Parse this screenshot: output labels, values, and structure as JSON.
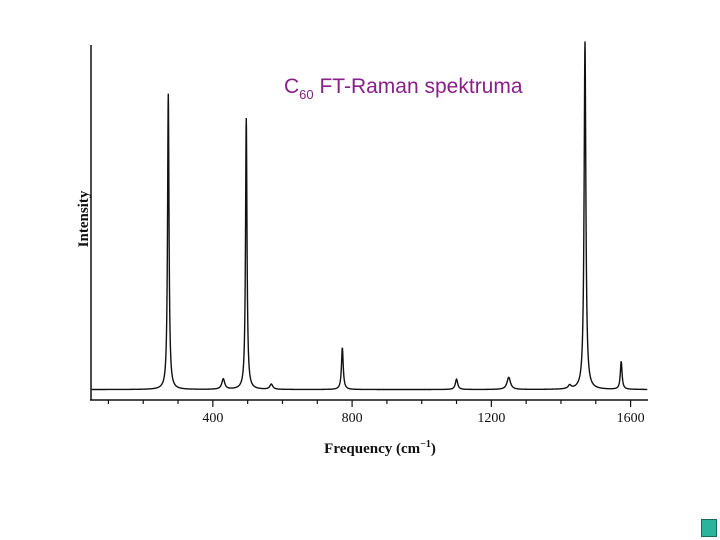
{
  "chart_data": {
    "type": "line",
    "title_main": "C",
    "title_sub": "60",
    "title_rest": " FT-Raman spektruma",
    "xlabel": "Frequency (cm",
    "xlabel_sup": "−1",
    "xlabel_end": ")",
    "ylabel": "Intensity",
    "xlim": [
      50,
      1650
    ],
    "ylim": [
      0,
      1.02
    ],
    "x_ticks": [
      400,
      800,
      1200,
      1600
    ],
    "x_tick_labels": [
      "400",
      "800",
      "1200",
      "1600"
    ],
    "baseline": 0.03,
    "peaks": [
      {
        "x": 272,
        "height": 0.85,
        "width": 2.5
      },
      {
        "x": 430,
        "height": 0.03,
        "width": 5
      },
      {
        "x": 496,
        "height": 0.78,
        "width": 2.5
      },
      {
        "x": 568,
        "height": 0.015,
        "width": 5
      },
      {
        "x": 772,
        "height": 0.12,
        "width": 3
      },
      {
        "x": 1100,
        "height": 0.03,
        "width": 4
      },
      {
        "x": 1250,
        "height": 0.035,
        "width": 6
      },
      {
        "x": 1425,
        "height": 0.01,
        "width": 5
      },
      {
        "x": 1469,
        "height": 1.0,
        "width": 3
      },
      {
        "x": 1573,
        "height": 0.08,
        "width": 3
      }
    ],
    "grid": false,
    "legend": "none"
  },
  "colors": {
    "title": "#8a1f8a",
    "line": "#111111",
    "corner_button": "#2bb39b"
  },
  "corner_button_icon": "square-icon"
}
